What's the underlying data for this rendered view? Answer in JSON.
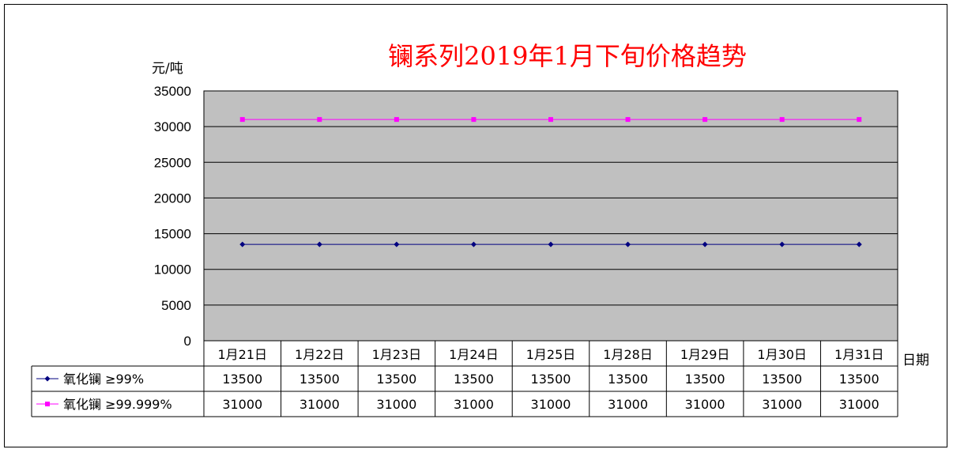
{
  "chart_data": {
    "type": "line",
    "title": "镧系列2019年1月下旬价格趋势",
    "ylabel": "元/吨",
    "xlabel": "日期",
    "categories": [
      "1月21日",
      "1月22日",
      "1月23日",
      "1月24日",
      "1月25日",
      "1月28日",
      "1月29日",
      "1月30日",
      "1月31日"
    ],
    "ylim": [
      0,
      35000
    ],
    "yticks": [
      0,
      5000,
      10000,
      15000,
      20000,
      25000,
      30000,
      35000
    ],
    "grid": true,
    "legend": "data-table",
    "series": [
      {
        "name": "氧化镧 ≥99%",
        "values": [
          13500,
          13500,
          13500,
          13500,
          13500,
          13500,
          13500,
          13500,
          13500
        ],
        "color": "#000080",
        "marker": "diamond"
      },
      {
        "name": "氧化镧 ≥99.999%",
        "values": [
          31000,
          31000,
          31000,
          31000,
          31000,
          31000,
          31000,
          31000,
          31000
        ],
        "color": "#ff00ff",
        "marker": "square"
      }
    ],
    "plot_bg": "#c0c0c0"
  }
}
